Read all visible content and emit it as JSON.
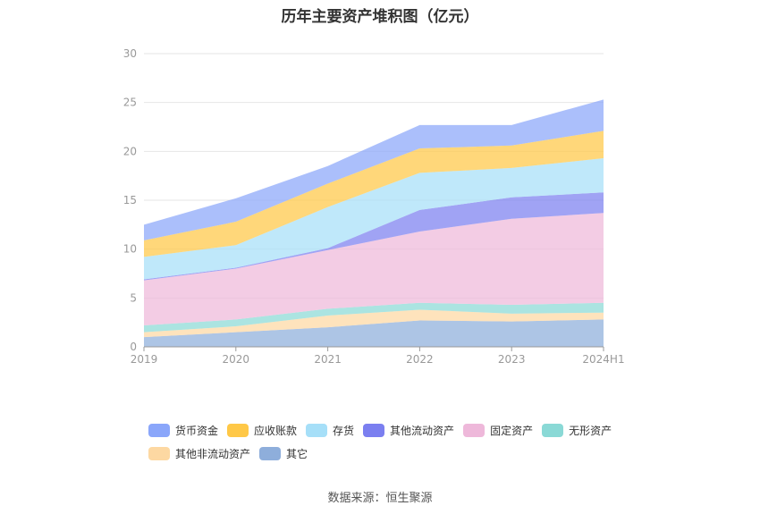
{
  "chart_data": {
    "type": "area",
    "stacked": true,
    "title": "历年主要资产堆积图（亿元）",
    "categories": [
      "2019",
      "2020",
      "2021",
      "2022",
      "2023",
      "2024H1"
    ],
    "ylim": [
      0,
      30
    ],
    "yticks": [
      0,
      5,
      10,
      15,
      20,
      25,
      30
    ],
    "grid": true,
    "legend_position": "bottom",
    "series": [
      {
        "name": "其它",
        "color": "#8eaedb",
        "values": [
          1.0,
          1.5,
          2.0,
          2.7,
          2.6,
          2.8
        ]
      },
      {
        "name": "其他非流动资产",
        "color": "#fdd8a2",
        "values": [
          0.5,
          0.6,
          1.2,
          1.1,
          0.8,
          0.7
        ]
      },
      {
        "name": "无形资产",
        "color": "#8ad9d6",
        "values": [
          0.7,
          0.7,
          0.7,
          0.7,
          0.9,
          1.0
        ]
      },
      {
        "name": "固定资产",
        "color": "#eeb8da",
        "values": [
          4.6,
          5.2,
          6.0,
          7.3,
          8.8,
          9.2
        ]
      },
      {
        "name": "其他流动资产",
        "color": "#7b7ff0",
        "values": [
          0.1,
          0.1,
          0.2,
          2.2,
          2.2,
          2.1
        ]
      },
      {
        "name": "存货",
        "color": "#a6dff8",
        "values": [
          2.3,
          2.3,
          4.2,
          3.8,
          3.0,
          3.5
        ]
      },
      {
        "name": "应收账款",
        "color": "#ffc847",
        "values": [
          1.7,
          2.4,
          2.4,
          2.5,
          2.3,
          2.8
        ]
      },
      {
        "name": "货币资金",
        "color": "#8aa6fa",
        "values": [
          1.6,
          2.4,
          1.8,
          2.4,
          2.1,
          3.2
        ]
      }
    ],
    "legend_order": [
      "货币资金",
      "应收账款",
      "存货",
      "其他流动资产",
      "固定资产",
      "无形资产",
      "其他非流动资产",
      "其它"
    ]
  },
  "source": "数据来源：恒生聚源"
}
